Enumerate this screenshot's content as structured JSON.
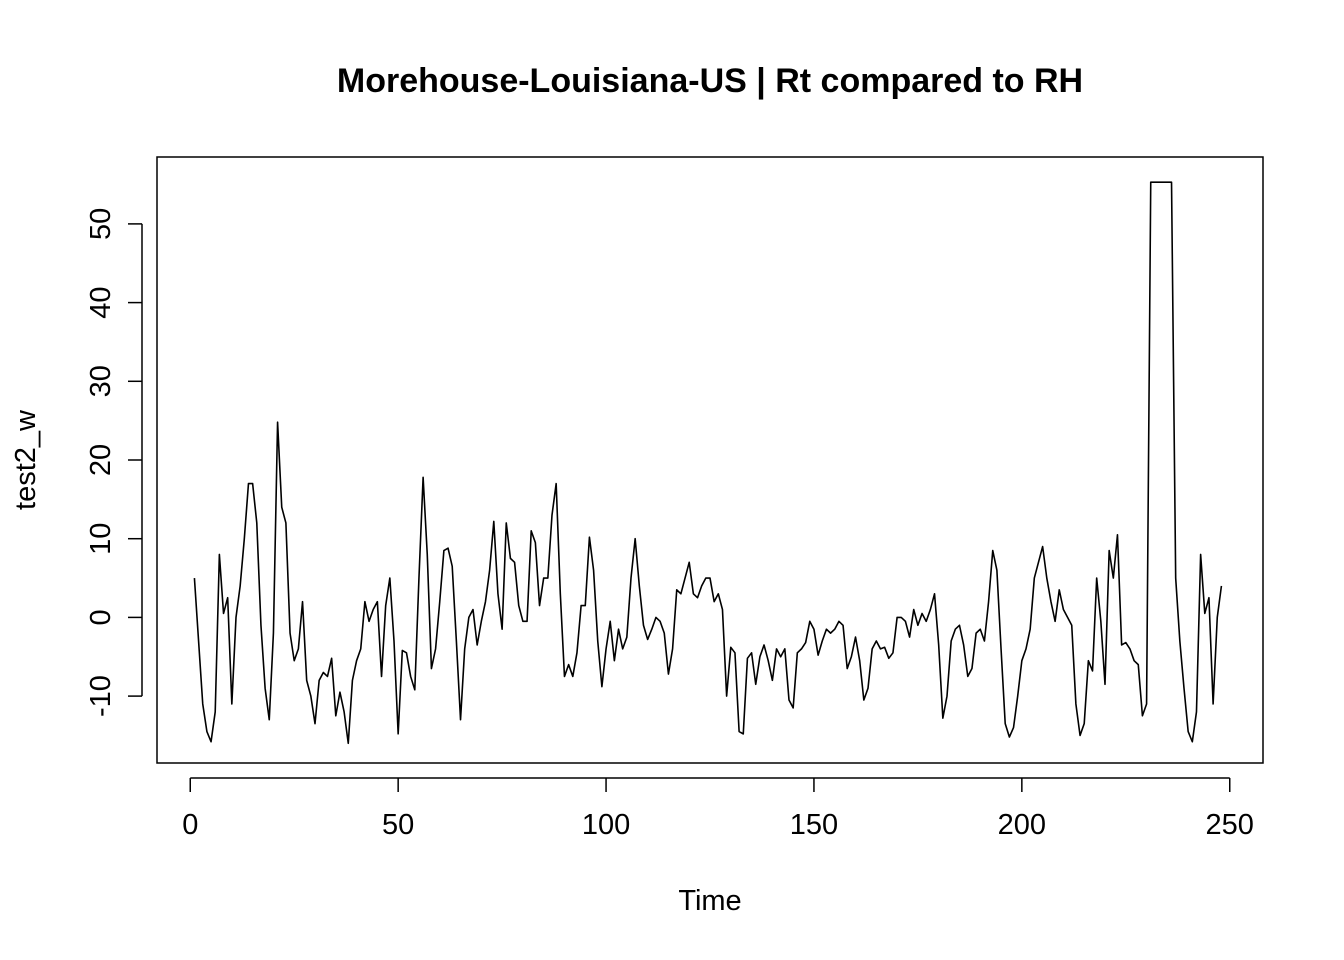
{
  "chart_data": {
    "type": "line",
    "title": "Morehouse-Louisiana-US | Rt compared to RH",
    "xlabel": "Time",
    "ylabel": "test2_w",
    "xlim": [
      -8,
      258
    ],
    "ylim": [
      -18.5,
      58.5
    ],
    "x_ticks": [
      0,
      50,
      100,
      150,
      200,
      250
    ],
    "y_ticks": [
      -10,
      0,
      10,
      20,
      30,
      40,
      50
    ],
    "x_tick_labels": [
      "0",
      "50",
      "100",
      "150",
      "200",
      "250"
    ],
    "y_tick_labels": [
      "-10",
      "0",
      "10",
      "20",
      "30",
      "40",
      "50"
    ],
    "grid": false,
    "legend": "none",
    "series": [
      {
        "color": "#000000",
        "x": [
          1,
          2,
          3,
          4,
          5,
          6,
          7,
          8,
          9,
          10,
          11,
          12,
          13,
          14,
          15,
          16,
          17,
          18,
          19,
          20,
          21,
          22,
          23,
          24,
          25,
          26,
          27,
          28,
          29,
          30,
          31,
          32,
          33,
          34,
          35,
          36,
          37,
          38,
          39,
          40,
          41,
          42,
          43,
          44,
          45,
          46,
          47,
          48,
          49,
          50,
          51,
          52,
          53,
          54,
          55,
          56,
          57,
          58,
          59,
          60,
          61,
          62,
          63,
          64,
          65,
          66,
          67,
          68,
          69,
          70,
          71,
          72,
          73,
          74,
          75,
          76,
          77,
          78,
          79,
          80,
          81,
          82,
          83,
          84,
          85,
          86,
          87,
          88,
          89,
          90,
          91,
          92,
          93,
          94,
          95,
          96,
          97,
          98,
          99,
          100,
          101,
          102,
          103,
          104,
          105,
          106,
          107,
          108,
          109,
          110,
          111,
          112,
          113,
          114,
          115,
          116,
          117,
          118,
          119,
          120,
          121,
          122,
          123,
          124,
          125,
          126,
          127,
          128,
          129,
          130,
          131,
          132,
          133,
          134,
          135,
          136,
          137,
          138,
          139,
          140,
          141,
          142,
          143,
          144,
          145,
          146,
          147,
          148,
          149,
          150,
          151,
          152,
          153,
          154,
          155,
          156,
          157,
          158,
          159,
          160,
          161,
          162,
          163,
          164,
          165,
          166,
          167,
          168,
          169,
          170,
          171,
          172,
          173,
          174,
          175,
          176,
          177,
          178,
          179,
          180,
          181,
          182,
          183,
          184,
          185,
          186,
          187,
          188,
          189,
          190,
          191,
          192,
          193,
          194,
          195,
          196,
          197,
          198,
          199,
          200,
          201,
          202,
          203,
          204,
          205,
          206,
          207,
          208,
          209,
          210,
          211,
          212,
          213,
          214,
          215,
          216,
          217,
          218,
          219,
          220,
          221,
          222,
          223,
          224,
          225,
          226,
          227,
          228,
          229,
          230,
          231,
          232,
          233,
          234,
          235,
          236,
          237,
          238,
          239,
          240,
          241,
          242,
          243,
          244,
          245,
          246,
          247,
          248
        ],
        "y": [
          5,
          -3,
          -11,
          -14.5,
          -15.8,
          -12,
          8,
          0.5,
          2.5,
          -11,
          0,
          4,
          10,
          17,
          17,
          12,
          -1,
          -9,
          -13,
          -2,
          24.8,
          14,
          12,
          -2,
          -5.5,
          -4,
          2,
          -8,
          -10,
          -13.5,
          -8,
          -7,
          -7.5,
          -5.2,
          -12.5,
          -9.5,
          -12,
          -16,
          -8,
          -5.5,
          -4,
          2,
          -0.5,
          1,
          2,
          -7.5,
          1.5,
          5,
          -3,
          -14.8,
          -4.2,
          -4.5,
          -7.5,
          -9.2,
          5,
          17.8,
          8,
          -6.5,
          -4,
          2,
          8.5,
          8.8,
          6.5,
          -3,
          -13,
          -4,
          0,
          1,
          -3.5,
          -0.5,
          2,
          6,
          12.2,
          3,
          -1.5,
          12,
          7.5,
          7,
          1.5,
          -0.5,
          -0.5,
          11,
          9.5,
          1.5,
          5,
          5,
          13,
          17,
          3,
          -7.5,
          -6,
          -7.5,
          -4.5,
          1.5,
          1.5,
          10.2,
          6,
          -3,
          -8.8,
          -4,
          -0.5,
          -5.5,
          -1.5,
          -4,
          -2.5,
          5,
          10,
          4,
          -1,
          -2.8,
          -1.5,
          0,
          -0.5,
          -2,
          -7.2,
          -4,
          3.5,
          3,
          5,
          7,
          3,
          2.5,
          4,
          5,
          5,
          2,
          3,
          1,
          -10,
          -3.8,
          -4.5,
          -14.5,
          -14.8,
          -5.2,
          -4.5,
          -8.5,
          -5,
          -3.5,
          -5.5,
          -8,
          -4,
          -5,
          -4,
          -10.5,
          -11.5,
          -4.5,
          -4,
          -3.2,
          -0.5,
          -1.5,
          -4.8,
          -3,
          -1.5,
          -2,
          -1.5,
          -0.5,
          -1,
          -6.5,
          -5,
          -2.5,
          -5.5,
          -10.5,
          -9,
          -4,
          -3,
          -4,
          -3.8,
          -5.2,
          -4.5,
          0,
          0,
          -0.5,
          -2.5,
          1,
          -1,
          0.5,
          -0.5,
          1,
          3,
          -3.5,
          -12.8,
          -10,
          -3,
          -1.5,
          -1,
          -3.5,
          -7.5,
          -6.5,
          -2,
          -1.5,
          -3,
          2,
          8.5,
          6,
          -4,
          -13.5,
          -15.2,
          -14,
          -10,
          -5.5,
          -4,
          -1.5,
          5,
          7,
          9,
          5,
          2,
          -0.5,
          3.5,
          1,
          0,
          -1,
          -11,
          -15,
          -13.5,
          -5.5,
          -6.8,
          5,
          -0.5,
          -8.5,
          8.5,
          5,
          10.5,
          -3.5,
          -3.2,
          -4,
          -5.5,
          -6,
          -12.5,
          -11,
          55.3,
          55.3,
          55.3,
          55.3,
          55.3,
          55.3,
          5,
          -3,
          -9,
          -14.5,
          -15.8,
          -12,
          8,
          0.5,
          2.5,
          -11,
          0,
          4
        ]
      }
    ]
  }
}
